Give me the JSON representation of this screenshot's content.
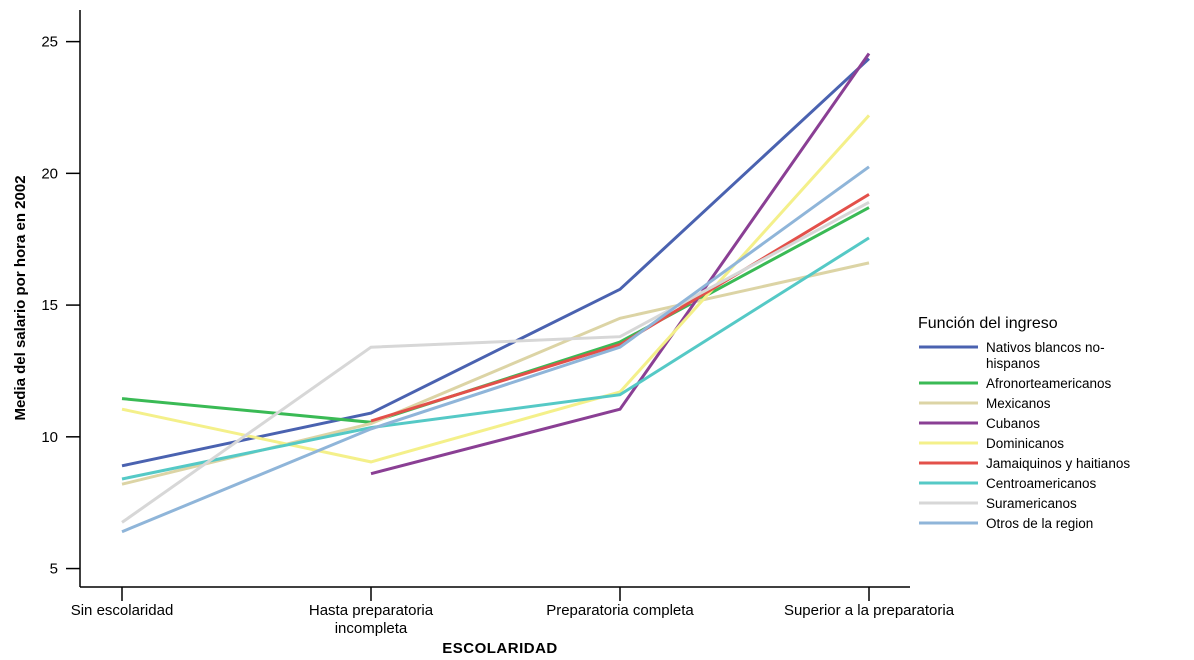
{
  "chart_data": {
    "type": "line",
    "ylabel": "Media del salario por hora en 2002",
    "xlabel": "ESCOLARIDAD",
    "categories": [
      [
        "Sin escolaridad"
      ],
      [
        "Hasta preparatoria",
        "incompleta"
      ],
      [
        "Preparatoria completa"
      ],
      [
        "Superior a la preparatoria"
      ]
    ],
    "ylim": [
      4.3,
      26.2
    ],
    "yticks": [
      5,
      10,
      15,
      20,
      25
    ],
    "grid": false,
    "legend": {
      "title": "Función del ingreso",
      "placement": "right"
    },
    "series": [
      {
        "name": [
          "Nativos blancos no-",
          "hispanos"
        ],
        "color": "#4a62b0",
        "values": [
          8.9,
          10.9,
          15.6,
          24.35
        ]
      },
      {
        "name": [
          "Afronorteamericanos"
        ],
        "color": "#3aba55",
        "values": [
          11.45,
          10.55,
          13.6,
          18.7
        ]
      },
      {
        "name": [
          "Mexicanos"
        ],
        "color": "#dcd4a5",
        "values": [
          8.2,
          10.5,
          14.5,
          16.6
        ]
      },
      {
        "name": [
          "Cubanos"
        ],
        "color": "#8a3f94",
        "values": [
          null,
          8.6,
          11.05,
          24.55
        ]
      },
      {
        "name": [
          "Dominicanos"
        ],
        "color": "#f4f08a",
        "values": [
          11.05,
          9.05,
          11.7,
          22.2
        ]
      },
      {
        "name": [
          "Jamaiquinos y haitianos"
        ],
        "color": "#e3504a",
        "values": [
          null,
          10.6,
          13.5,
          19.2
        ]
      },
      {
        "name": [
          "Centroamericanos"
        ],
        "color": "#55c9c6",
        "values": [
          8.4,
          10.35,
          11.6,
          17.55
        ]
      },
      {
        "name": [
          "Suramericanos"
        ],
        "color": "#d7d7d7",
        "values": [
          6.75,
          13.4,
          13.8,
          18.9
        ]
      },
      {
        "name": [
          "Otros de la region"
        ],
        "color": "#8fb5d9",
        "values": [
          6.4,
          10.3,
          13.4,
          20.25
        ]
      }
    ]
  }
}
